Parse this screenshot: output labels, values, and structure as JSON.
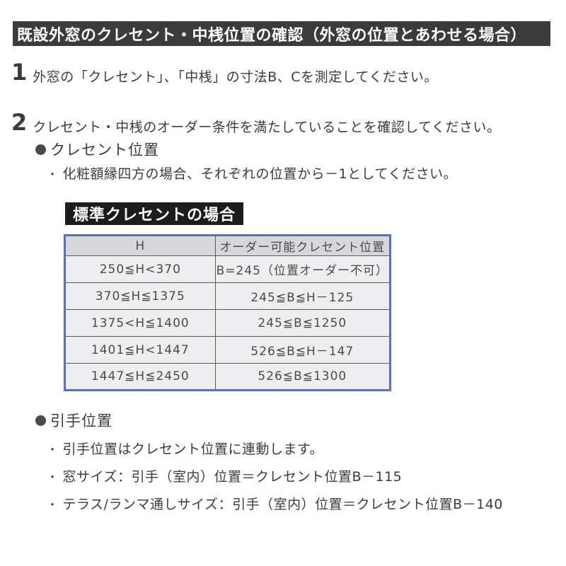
{
  "page": {
    "title": "既設外窓のクレセント・中桟位置の確認（外窓の位置とあわせる場合）"
  },
  "steps": [
    {
      "number": "1",
      "text": "外窓の「クレセント」、「中桟」の寸法B、Cを測定してください。"
    },
    {
      "number": "2",
      "text": "クレセント・中桟のオーダー条件を満たしていることを確認してください。"
    }
  ],
  "crescent_section": {
    "heading": "クレセント位置",
    "note_marker": "・",
    "note": "化粧額縁四方の場合、それぞれの位置から－1としてください。",
    "table_label": "標準クレセントの場合"
  },
  "crescent_table": {
    "headers": [
      "H",
      "オーダー可能クレセント位置"
    ],
    "rows": [
      [
        "250≦H<370",
        "B=245（位置オーダー不可）"
      ],
      [
        "370≦H≦1375",
        "245≦B≦H－125"
      ],
      [
        "1375<H≦1400",
        "245≦B≦1250"
      ],
      [
        "1401≦H<1447",
        "526≦B≦H－147"
      ],
      [
        "1447≦H≦2450",
        "526≦B≦1300"
      ]
    ]
  },
  "handle_section": {
    "heading": "引手位置",
    "note_marker": "・",
    "notes": [
      "引手位置はクレセント位置に連動します。",
      "窓サイズ：引手（室内）位置＝クレセント位置B－115",
      "テラス/ランマ通しサイズ：引手（室内）位置＝クレセント位置B－140"
    ]
  },
  "colors": {
    "title_bar_bg": "#3b3b3b",
    "label_bg": "#1c1c1c",
    "table_border": "#5171cc",
    "table_header_bg": "#d7d7db",
    "table_cell_bg": "#eeeef0",
    "text": "#3b3b3b"
  }
}
